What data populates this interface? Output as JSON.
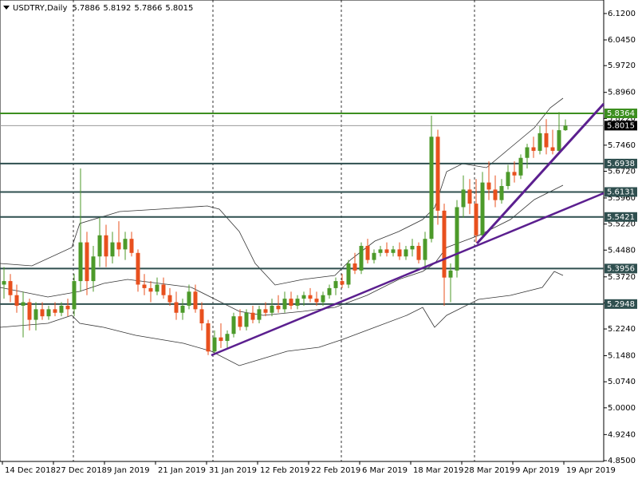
{
  "chart_data": {
    "type": "candlestick",
    "title": "USDTRY,Daily",
    "header_ohlc": [
      5.7886,
      5.8192,
      5.7866,
      5.8015
    ],
    "categories": [
      "14 Dec 2018",
      null,
      null,
      null,
      null,
      null,
      null,
      null,
      "27 Dec 2018",
      null,
      null,
      null,
      null,
      null,
      null,
      null,
      "9 Jan 2019",
      null,
      null,
      null,
      null,
      null,
      null,
      null,
      "21 Jan 2019",
      null,
      null,
      null,
      null,
      null,
      null,
      null,
      "31 Jan 2019",
      null,
      null,
      null,
      null,
      null,
      null,
      null,
      "12 Feb 2019",
      null,
      null,
      null,
      null,
      null,
      null,
      null,
      "22 Feb 2019",
      null,
      null,
      null,
      null,
      null,
      null,
      null,
      "6 Mar 2019",
      null,
      null,
      null,
      null,
      null,
      null,
      null,
      "18 Mar 2019",
      null,
      null,
      null,
      null,
      null,
      null,
      null,
      "28 Mar 2019",
      null,
      null,
      null,
      null,
      null,
      null,
      null,
      "9 Apr 2019",
      null,
      null,
      null,
      null,
      null,
      null,
      null,
      "19 Apr 2019"
    ],
    "open": [
      5.35,
      5.36,
      5.32,
      5.29,
      5.3,
      5.25,
      5.28,
      5.26,
      5.28,
      5.27,
      5.29,
      5.28,
      5.36,
      5.47,
      5.36,
      5.43,
      5.49,
      5.43,
      5.47,
      5.45,
      5.48,
      5.44,
      5.35,
      5.34,
      5.33,
      5.35,
      5.32,
      5.3,
      5.27,
      5.29,
      5.33,
      5.28,
      5.24,
      5.16,
      5.2,
      5.19,
      5.21,
      5.26,
      5.23,
      5.27,
      5.25,
      5.28,
      5.27,
      5.29,
      5.28,
      5.31,
      5.29,
      5.31,
      5.32,
      5.31,
      5.3,
      5.32,
      5.34,
      5.36,
      5.35,
      5.41,
      5.39,
      5.46,
      5.42,
      5.44,
      5.45,
      5.44,
      5.45,
      5.43,
      5.45,
      5.46,
      5.42,
      5.48,
      5.77,
      5.56,
      5.37,
      5.39,
      5.57,
      5.62,
      5.58,
      5.49,
      5.64,
      5.62,
      5.59,
      5.63,
      5.67,
      5.66,
      5.71,
      5.74,
      5.73,
      5.78,
      5.74,
      5.73,
      5.7886
    ],
    "high": [
      5.4,
      5.38,
      5.35,
      5.33,
      5.31,
      5.3,
      5.3,
      5.29,
      5.3,
      5.3,
      5.31,
      5.38,
      5.68,
      5.5,
      5.46,
      5.54,
      5.52,
      5.5,
      5.53,
      5.5,
      5.5,
      5.45,
      5.38,
      5.36,
      5.37,
      5.37,
      5.34,
      5.33,
      5.31,
      5.35,
      5.35,
      5.3,
      5.25,
      5.22,
      5.24,
      5.22,
      5.27,
      5.28,
      5.28,
      5.29,
      5.29,
      5.3,
      5.31,
      5.32,
      5.33,
      5.33,
      5.32,
      5.33,
      5.34,
      5.33,
      5.33,
      5.35,
      5.37,
      5.38,
      5.42,
      5.44,
      5.47,
      5.48,
      5.45,
      5.46,
      5.47,
      5.46,
      5.47,
      5.46,
      5.48,
      5.47,
      5.5,
      5.83,
      5.79,
      5.58,
      5.41,
      5.59,
      5.66,
      5.65,
      5.65,
      5.67,
      5.7,
      5.66,
      5.65,
      5.69,
      5.7,
      5.72,
      5.75,
      5.77,
      5.8,
      5.82,
      5.79,
      5.84,
      5.8192
    ],
    "low": [
      5.31,
      5.3,
      5.27,
      5.2,
      5.22,
      5.22,
      5.25,
      5.25,
      5.26,
      5.26,
      5.26,
      5.26,
      5.33,
      5.32,
      5.33,
      5.4,
      5.4,
      5.41,
      5.43,
      5.42,
      5.43,
      5.33,
      5.32,
      5.3,
      5.32,
      5.31,
      5.29,
      5.25,
      5.25,
      5.28,
      5.27,
      5.22,
      5.15,
      5.15,
      5.17,
      5.17,
      5.2,
      5.22,
      5.22,
      5.24,
      5.24,
      5.26,
      5.26,
      5.27,
      5.27,
      5.28,
      5.28,
      5.29,
      5.3,
      5.29,
      5.29,
      5.31,
      5.32,
      5.34,
      5.34,
      5.38,
      5.38,
      5.41,
      5.41,
      5.43,
      5.43,
      5.43,
      5.42,
      5.42,
      5.43,
      5.41,
      5.4,
      5.47,
      5.52,
      5.29,
      5.3,
      5.37,
      5.54,
      5.55,
      5.47,
      5.48,
      5.59,
      5.57,
      5.58,
      5.62,
      5.64,
      5.65,
      5.68,
      5.71,
      5.72,
      5.72,
      5.72,
      5.72,
      5.7866
    ],
    "close": [
      5.36,
      5.32,
      5.29,
      5.3,
      5.25,
      5.28,
      5.26,
      5.28,
      5.27,
      5.29,
      5.28,
      5.36,
      5.47,
      5.36,
      5.43,
      5.49,
      5.43,
      5.47,
      5.45,
      5.48,
      5.44,
      5.35,
      5.34,
      5.33,
      5.35,
      5.32,
      5.3,
      5.27,
      5.29,
      5.33,
      5.28,
      5.24,
      5.16,
      5.2,
      5.19,
      5.21,
      5.26,
      5.23,
      5.27,
      5.25,
      5.28,
      5.27,
      5.29,
      5.28,
      5.31,
      5.29,
      5.31,
      5.32,
      5.31,
      5.3,
      5.32,
      5.34,
      5.36,
      5.35,
      5.41,
      5.39,
      5.46,
      5.42,
      5.44,
      5.45,
      5.44,
      5.45,
      5.43,
      5.45,
      5.46,
      5.42,
      5.48,
      5.77,
      5.56,
      5.37,
      5.39,
      5.57,
      5.62,
      5.58,
      5.49,
      5.64,
      5.62,
      5.59,
      5.63,
      5.67,
      5.66,
      5.71,
      5.74,
      5.73,
      5.78,
      5.74,
      5.73,
      5.7886,
      5.8015
    ],
    "up_color": "#4c9a2a",
    "down_color": "#e8501e",
    "ylim": [
      4.8477,
      6.1584
    ],
    "yticks": [
      {
        "value": 6.12,
        "label": "6.1200"
      },
      {
        "value": 6.045,
        "label": "6.0450"
      },
      {
        "value": 5.972,
        "label": "5.9720"
      },
      {
        "value": 5.896,
        "label": "5.8960"
      },
      {
        "value": 5.822,
        "label": "5.8220"
      },
      {
        "value": 5.746,
        "label": "5.7460"
      },
      {
        "value": 5.672,
        "label": "5.6720"
      },
      {
        "value": 5.596,
        "label": "5.5960"
      },
      {
        "value": 5.522,
        "label": "5.5220"
      },
      {
        "value": 5.448,
        "label": "5.4480"
      },
      {
        "value": 5.372,
        "label": "5.3720"
      },
      {
        "value": 5.298,
        "label": "5.2980"
      },
      {
        "value": 5.224,
        "label": "5.2240"
      },
      {
        "value": 5.148,
        "label": "5.1480"
      },
      {
        "value": 5.074,
        "label": "5.0740"
      },
      {
        "value": 5.0,
        "label": "5.0000"
      },
      {
        "value": 4.924,
        "label": "4.9240"
      },
      {
        "value": 4.85,
        "label": "4.8500"
      }
    ],
    "levels": [
      {
        "value": 5.8364,
        "color": "#3c8f1f"
      },
      {
        "value": 5.6938,
        "color": "#2f4f4f"
      },
      {
        "value": 5.6131,
        "color": "#2f4f4f"
      },
      {
        "value": 5.5421,
        "color": "#2f4f4f"
      },
      {
        "value": 5.3956,
        "color": "#2f4f4f"
      },
      {
        "value": 5.2948,
        "color": "#2f4f4f"
      }
    ],
    "last_price": 5.8015
  }
}
